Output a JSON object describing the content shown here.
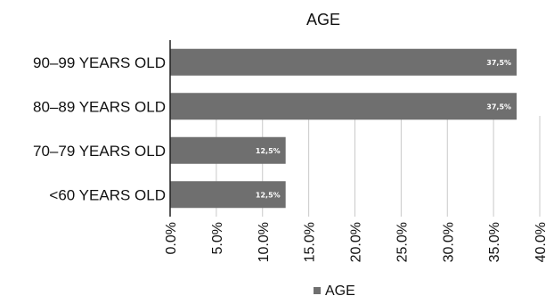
{
  "chart_data": {
    "type": "bar",
    "orientation": "horizontal",
    "title": "AGE",
    "categories": [
      "90–99 YEARS OLD",
      "80–89 YEARS OLD",
      "70–79 YEARS OLD",
      "<60 YEARS OLD"
    ],
    "series": [
      {
        "name": "AGE",
        "values": [
          37.5,
          37.5,
          12.5,
          12.5
        ],
        "labels": [
          "37,5%",
          "37,5%",
          "12,5%",
          "12,5%"
        ]
      }
    ],
    "xlim": [
      0,
      40
    ],
    "x_ticks": [
      "0.0%",
      "5.0%",
      "10.0%",
      "15.0%",
      "20.0%",
      "25.0%",
      "30.0%",
      "35.0%",
      "40.0%"
    ],
    "x_tick_values": [
      0,
      5,
      10,
      15,
      20,
      25,
      30,
      35,
      40
    ],
    "grid": true,
    "legend_position": "bottom",
    "colors": {
      "bar": "#6f6f6f",
      "grid": "#c9c9c9",
      "axis": "#222222",
      "legend_marker": "#6f6f6f"
    }
  }
}
